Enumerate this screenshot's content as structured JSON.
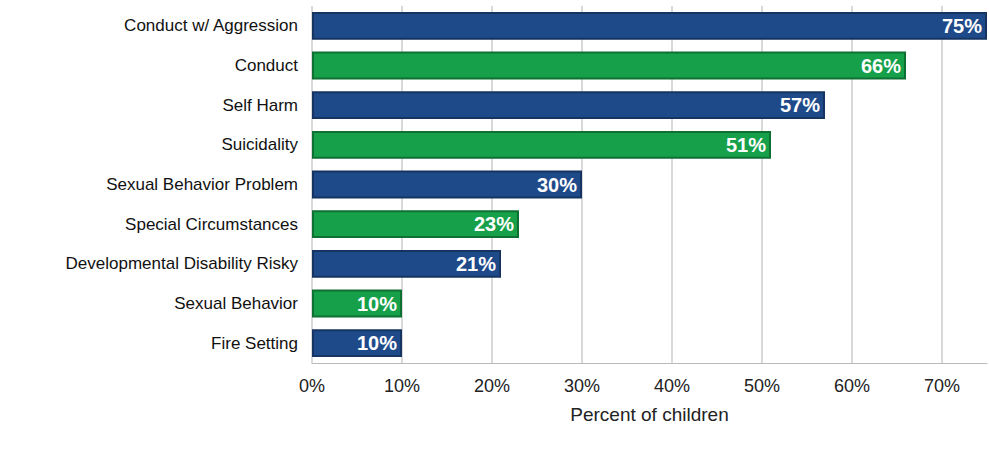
{
  "chart_data": {
    "type": "bar",
    "orientation": "horizontal",
    "x_label": "Percent of children",
    "categories": [
      "Conduct w/ Aggression",
      "Conduct",
      "Self Harm",
      "Suicidality",
      "Sexual Behavior Problem",
      "Special Circumstances",
      "Developmental Disability Risky",
      "Sexual Behavior",
      "Fire Setting"
    ],
    "values": [
      75,
      66,
      57,
      51,
      30,
      23,
      21,
      10,
      10
    ],
    "value_labels": [
      "75%",
      "66%",
      "57%",
      "51%",
      "30%",
      "23%",
      "21%",
      "10%",
      "10%"
    ],
    "colors": [
      "#1f4a8a",
      "#16a04a",
      "#1f4a8a",
      "#16a04a",
      "#1f4a8a",
      "#16a04a",
      "#1f4a8a",
      "#16a04a",
      "#1f4a8a"
    ],
    "xlim": [
      0,
      75
    ],
    "xticks": [
      {
        "value": 0,
        "label": "0%"
      },
      {
        "value": 10,
        "label": "10%"
      },
      {
        "value": 20,
        "label": "20%"
      },
      {
        "value": 30,
        "label": "30%"
      },
      {
        "value": 40,
        "label": "40%"
      },
      {
        "value": 50,
        "label": "50%"
      },
      {
        "value": 60,
        "label": "60%"
      },
      {
        "value": 70,
        "label": "70%"
      }
    ],
    "grid": true,
    "data_labels": true
  }
}
